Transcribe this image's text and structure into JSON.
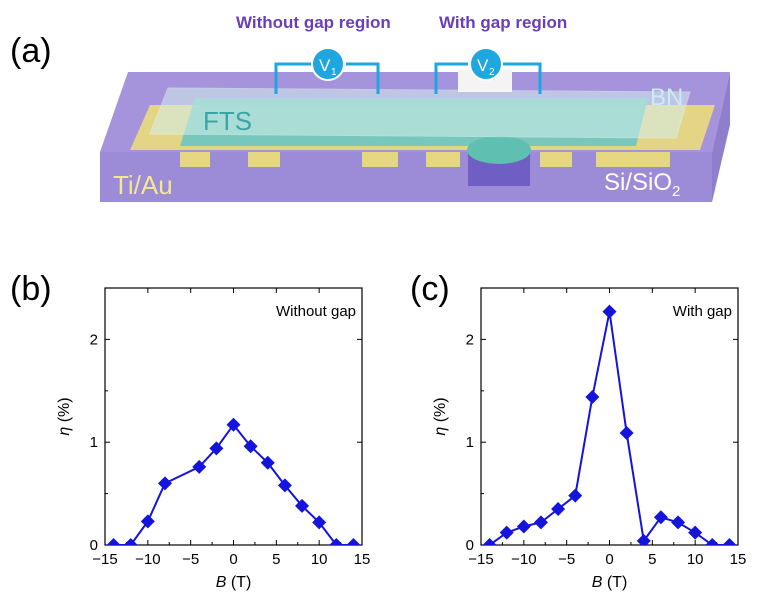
{
  "panel_labels": {
    "a": "(a)",
    "b": "(b)",
    "c": "(c)"
  },
  "device": {
    "label_without_gap_region": "Without gap region",
    "label_with_gap_region": "With gap region",
    "voltmeter_1": {
      "symbol": "V",
      "subscript": "1"
    },
    "voltmeter_2": {
      "symbol": "V",
      "subscript": "2"
    },
    "material_fts": "FTS",
    "material_bn": "BN",
    "material_tiau": "Ti/Au",
    "material_substrate": {
      "prefix": "Si/SiO",
      "subscript": "2"
    },
    "colors": {
      "label_purple": "#6a3fb5",
      "wire": "#1ea6e0",
      "substrate": "#9f8fd8",
      "gold": "#e7d878",
      "fts": "#6fc7c0",
      "bn": "#c9ece9"
    }
  },
  "chart_data": [
    {
      "type": "line",
      "inside_label": "Without gap",
      "xlabel_var": "B",
      "xlabel_unit": " (T)",
      "ylabel_var": "η",
      "ylabel_unit": " (%)",
      "xlim": [
        -15,
        15
      ],
      "ylim": [
        0,
        2.5
      ],
      "xticks": [
        "−15",
        "−10",
        "−5",
        "0",
        "5",
        "10",
        "15"
      ],
      "yticks": [
        "0",
        "1",
        "2"
      ],
      "color": "#1414dc",
      "x": [
        -14,
        -12,
        -10,
        -8,
        -4,
        -2,
        0,
        2,
        4,
        6,
        8,
        10,
        12,
        14
      ],
      "y": [
        0.0,
        0.0,
        0.23,
        0.6,
        0.76,
        0.94,
        1.17,
        0.96,
        0.8,
        0.58,
        0.38,
        0.22,
        0.0,
        0.0
      ]
    },
    {
      "type": "line",
      "inside_label": "With gap",
      "xlabel_var": "B",
      "xlabel_unit": " (T)",
      "ylabel_var": "η",
      "ylabel_unit": " (%)",
      "xlim": [
        -15,
        15
      ],
      "ylim": [
        0,
        2.5
      ],
      "xticks": [
        "−15",
        "−10",
        "−5",
        "0",
        "5",
        "10",
        "15"
      ],
      "yticks": [
        "0",
        "1",
        "2"
      ],
      "color": "#1414dc",
      "x": [
        -14,
        -12,
        -10,
        -8,
        -6,
        -4,
        -2,
        0,
        2,
        4,
        6,
        8,
        10,
        12,
        14
      ],
      "y": [
        0.0,
        0.12,
        0.18,
        0.22,
        0.35,
        0.48,
        1.44,
        2.27,
        1.09,
        0.04,
        0.27,
        0.22,
        0.12,
        0.0,
        0.0
      ]
    }
  ]
}
